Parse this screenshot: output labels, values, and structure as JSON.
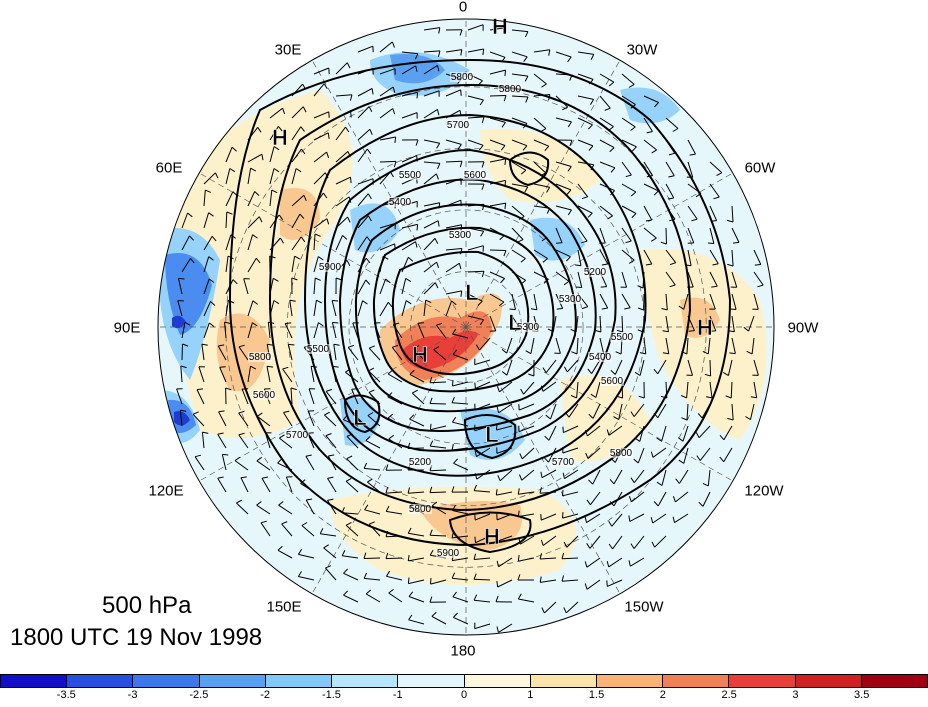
{
  "figure": {
    "title": "500 hPa",
    "subtitle": "1800 UTC 19 Nov 1998"
  },
  "longitude_labels": [
    {
      "name": "lon-0",
      "text": "0"
    },
    {
      "name": "lon-30w",
      "text": "30W"
    },
    {
      "name": "lon-60w",
      "text": "60W"
    },
    {
      "name": "lon-90w",
      "text": "90W"
    },
    {
      "name": "lon-120w",
      "text": "120W"
    },
    {
      "name": "lon-150w",
      "text": "150W"
    },
    {
      "name": "lon-180",
      "text": "180"
    },
    {
      "name": "lon-150e",
      "text": "150E"
    },
    {
      "name": "lon-120e",
      "text": "120E"
    },
    {
      "name": "lon-90e",
      "text": "90E"
    },
    {
      "name": "lon-60e",
      "text": "60E"
    },
    {
      "name": "lon-30e",
      "text": "30E"
    }
  ],
  "pressure_centers": [
    {
      "name": "high-1",
      "text": "H"
    },
    {
      "name": "high-2",
      "text": "H"
    },
    {
      "name": "high-3",
      "text": "H"
    },
    {
      "name": "high-4",
      "text": "H"
    },
    {
      "name": "high-5",
      "text": "H"
    },
    {
      "name": "low-1",
      "text": "L"
    },
    {
      "name": "low-2",
      "text": "L"
    },
    {
      "name": "low-3",
      "text": "L"
    },
    {
      "name": "low-4",
      "text": "L"
    }
  ],
  "contour_labels": [
    "5800",
    "5800",
    "5700",
    "5600",
    "5500",
    "5400",
    "5300",
    "5200",
    "5300",
    "5400",
    "5500",
    "5600",
    "5700",
    "5800",
    "5900",
    "5200",
    "5500",
    "5700",
    "5600",
    "5800",
    "5800",
    "5900",
    "5300"
  ],
  "colorbar": {
    "colors": [
      "#1010c8",
      "#2850e0",
      "#3c78e8",
      "#5aa0f0",
      "#82c8f8",
      "#b4e6fc",
      "#e0f6fc",
      "#fdf8dc",
      "#fce4a8",
      "#f8b478",
      "#f08058",
      "#e84038",
      "#d02020",
      "#a00010"
    ],
    "ticks": [
      "-3.5",
      "-3",
      "-2.5",
      "-2",
      "-1.5",
      "-1",
      "0",
      "1",
      "1.5",
      "2",
      "2.5",
      "3",
      "3.5"
    ]
  },
  "anomaly_colors": {
    "deep_blue": "#1e3cd2",
    "blue": "#4b8cf0",
    "light_blue": "#96d2fa",
    "pale_blue": "#c8f0fc",
    "pale_yellow": "#fdf3cf",
    "light_orange": "#f8c890",
    "orange": "#f09060",
    "red": "#e84038"
  }
}
